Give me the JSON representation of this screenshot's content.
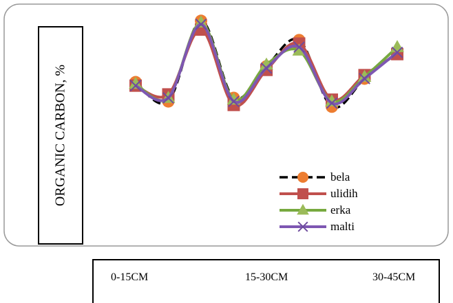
{
  "chart_data": {
    "type": "line",
    "ylabel": "ORGANIC CARBON, %",
    "categories": [
      "0-15CM",
      "15-30CM",
      "30-45CM"
    ],
    "x": [
      1,
      2,
      3,
      4,
      5,
      6,
      7,
      8,
      9
    ],
    "ylim": [
      0,
      1
    ],
    "series": [
      {
        "name": "bela",
        "marker": "circle",
        "dash": true,
        "color": "#000000",
        "marker_color": "#ED7D31",
        "values": [
          0.59,
          0.48,
          0.94,
          0.5,
          0.68,
          0.83,
          0.45,
          0.61,
          0.76
        ]
      },
      {
        "name": "ulidih",
        "marker": "square",
        "dash": false,
        "color": "#C0504D",
        "marker_color": "#C0504D",
        "values": [
          0.57,
          0.52,
          0.89,
          0.46,
          0.66,
          0.81,
          0.49,
          0.63,
          0.75
        ]
      },
      {
        "name": "erka",
        "marker": "triangle",
        "dash": false,
        "color": "#77A93F",
        "marker_color": "#9BBB59",
        "values": [
          0.58,
          0.5,
          0.93,
          0.49,
          0.69,
          0.77,
          0.48,
          0.62,
          0.79
        ]
      },
      {
        "name": "malti",
        "marker": "x",
        "dash": false,
        "color": "#7E57B2",
        "marker_color": "#6E4C9E",
        "values": [
          0.57,
          0.5,
          0.92,
          0.48,
          0.67,
          0.79,
          0.47,
          0.61,
          0.76
        ]
      }
    ]
  }
}
